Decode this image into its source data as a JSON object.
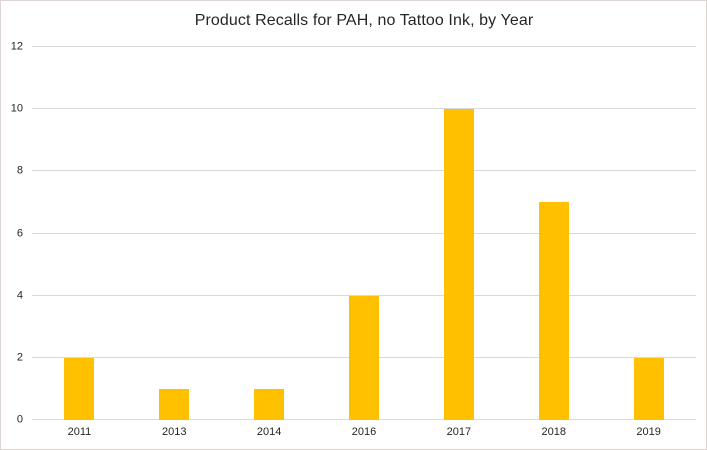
{
  "chart_data": {
    "type": "bar",
    "title": "Product Recalls for PAH, no Tattoo Ink, by Year",
    "categories": [
      "2011",
      "2013",
      "2014",
      "2016",
      "2017",
      "2018",
      "2019"
    ],
    "values": [
      2,
      1,
      1,
      4,
      10,
      7,
      2
    ],
    "xlabel": "",
    "ylabel": "",
    "ylim": [
      0,
      12
    ],
    "yticks": [
      0,
      2,
      4,
      6,
      8,
      10,
      12
    ],
    "grid": true,
    "legend": false,
    "colors": {
      "bar": "#FFC000",
      "gridline": "#d9d9d9",
      "border": "#ddd4d4",
      "text": "#262626",
      "background": "#ffffff"
    }
  }
}
